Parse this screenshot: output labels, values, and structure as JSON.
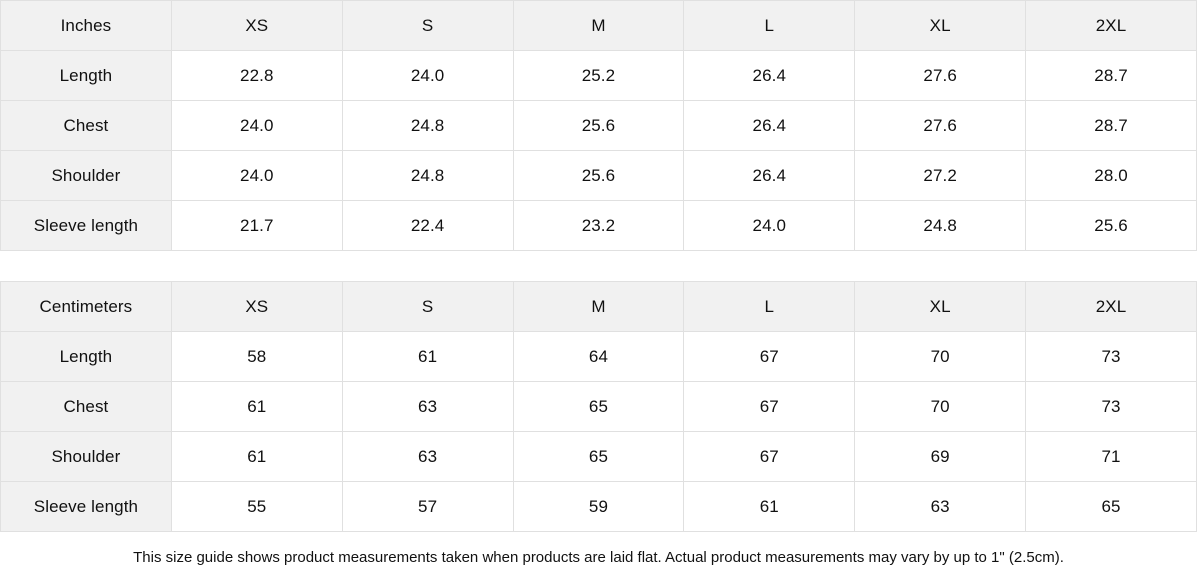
{
  "page": {
    "colors": {
      "header_background": "#f1f1f1",
      "label_column_background": "#f1f1f1",
      "cell_background": "#ffffff",
      "border": "#e0e0e0",
      "text": "#111111"
    }
  },
  "size_guide": {
    "tables": [
      {
        "unit_label": "Inches",
        "columns": [
          "XS",
          "S",
          "M",
          "L",
          "XL",
          "2XL"
        ],
        "rows": [
          {
            "label": "Length",
            "values": [
              "22.8",
              "24.0",
              "25.2",
              "26.4",
              "27.6",
              "28.7"
            ]
          },
          {
            "label": "Chest",
            "values": [
              "24.0",
              "24.8",
              "25.6",
              "26.4",
              "27.6",
              "28.7"
            ]
          },
          {
            "label": "Shoulder",
            "values": [
              "24.0",
              "24.8",
              "25.6",
              "26.4",
              "27.2",
              "28.0"
            ]
          },
          {
            "label": "Sleeve length",
            "values": [
              "21.7",
              "22.4",
              "23.2",
              "24.0",
              "24.8",
              "25.6"
            ]
          }
        ]
      },
      {
        "unit_label": "Centimeters",
        "columns": [
          "XS",
          "S",
          "M",
          "L",
          "XL",
          "2XL"
        ],
        "rows": [
          {
            "label": "Length",
            "values": [
              "58",
              "61",
              "64",
              "67",
              "70",
              "73"
            ]
          },
          {
            "label": "Chest",
            "values": [
              "61",
              "63",
              "65",
              "67",
              "70",
              "73"
            ]
          },
          {
            "label": "Shoulder",
            "values": [
              "61",
              "63",
              "65",
              "67",
              "69",
              "71"
            ]
          },
          {
            "label": "Sleeve length",
            "values": [
              "55",
              "57",
              "59",
              "61",
              "63",
              "65"
            ]
          }
        ]
      }
    ],
    "footnote": "This size guide shows product measurements taken when products are laid flat.  Actual product measurements may vary by up to 1\" (2.5cm)."
  }
}
